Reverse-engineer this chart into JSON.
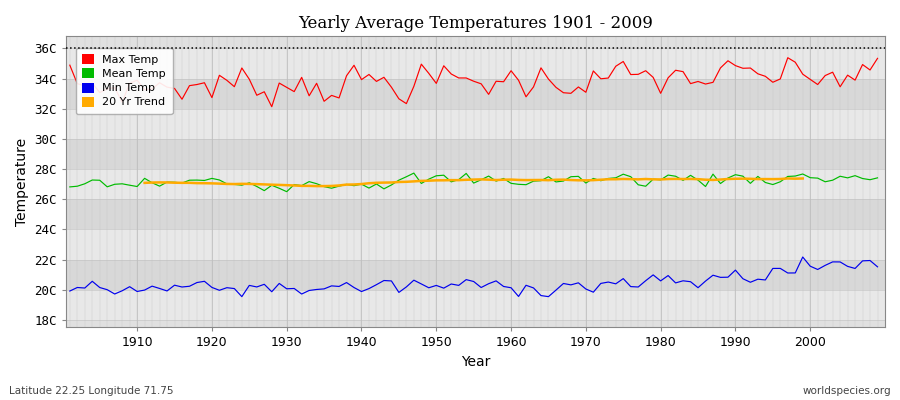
{
  "title": "Yearly Average Temperatures 1901 - 2009",
  "xlabel": "Year",
  "ylabel": "Temperature",
  "lat_label": "Latitude 22.25 Longitude 71.75",
  "source_label": "worldspecies.org",
  "start_year": 1901,
  "end_year": 2009,
  "yticks": [
    18,
    20,
    22,
    24,
    26,
    28,
    30,
    32,
    34,
    36
  ],
  "ylim": [
    17.5,
    36.8
  ],
  "xlim": [
    1900.5,
    2010
  ],
  "bg_color": "#dcdcdc",
  "plot_bg_color": "#e0e0e0",
  "grid_color": "#f5f5f5",
  "max_temp_color": "#ff0000",
  "mean_temp_color": "#00bb00",
  "min_temp_color": "#0000ee",
  "trend_color": "#ffaa00",
  "legend_labels": [
    "Max Temp",
    "Mean Temp",
    "Min Temp",
    "20 Yr Trend"
  ],
  "dotted_line_y": 36,
  "fig_bg": "#ffffff"
}
